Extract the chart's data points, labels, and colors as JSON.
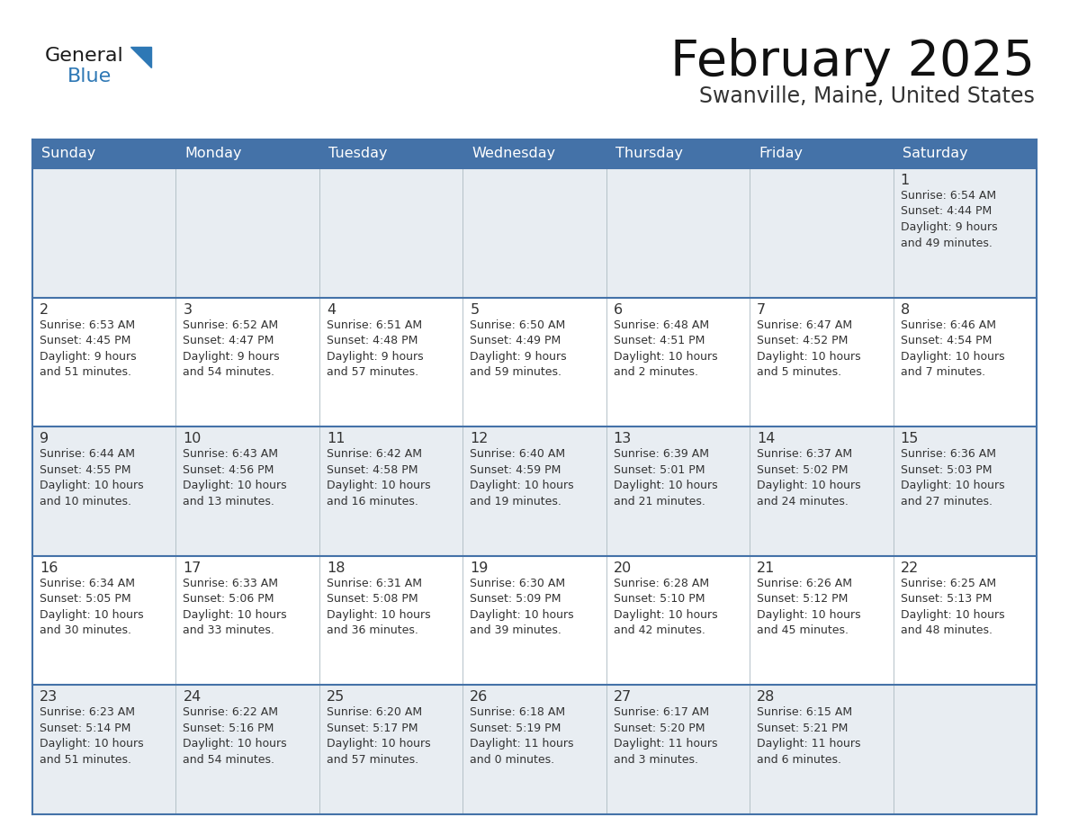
{
  "title": "February 2025",
  "subtitle": "Swanville, Maine, United States",
  "header_color": "#4472a8",
  "header_text_color": "#ffffff",
  "cell_bg_white": "#ffffff",
  "cell_bg_gray": "#e8edf2",
  "border_color": "#4472a8",
  "grid_color": "#b0bec5",
  "text_color": "#333333",
  "day_number_color": "#333333",
  "days_of_week": [
    "Sunday",
    "Monday",
    "Tuesday",
    "Wednesday",
    "Thursday",
    "Friday",
    "Saturday"
  ],
  "weeks": [
    [
      {
        "day": null,
        "info": null
      },
      {
        "day": null,
        "info": null
      },
      {
        "day": null,
        "info": null
      },
      {
        "day": null,
        "info": null
      },
      {
        "day": null,
        "info": null
      },
      {
        "day": null,
        "info": null
      },
      {
        "day": 1,
        "info": "Sunrise: 6:54 AM\nSunset: 4:44 PM\nDaylight: 9 hours\nand 49 minutes."
      }
    ],
    [
      {
        "day": 2,
        "info": "Sunrise: 6:53 AM\nSunset: 4:45 PM\nDaylight: 9 hours\nand 51 minutes."
      },
      {
        "day": 3,
        "info": "Sunrise: 6:52 AM\nSunset: 4:47 PM\nDaylight: 9 hours\nand 54 minutes."
      },
      {
        "day": 4,
        "info": "Sunrise: 6:51 AM\nSunset: 4:48 PM\nDaylight: 9 hours\nand 57 minutes."
      },
      {
        "day": 5,
        "info": "Sunrise: 6:50 AM\nSunset: 4:49 PM\nDaylight: 9 hours\nand 59 minutes."
      },
      {
        "day": 6,
        "info": "Sunrise: 6:48 AM\nSunset: 4:51 PM\nDaylight: 10 hours\nand 2 minutes."
      },
      {
        "day": 7,
        "info": "Sunrise: 6:47 AM\nSunset: 4:52 PM\nDaylight: 10 hours\nand 5 minutes."
      },
      {
        "day": 8,
        "info": "Sunrise: 6:46 AM\nSunset: 4:54 PM\nDaylight: 10 hours\nand 7 minutes."
      }
    ],
    [
      {
        "day": 9,
        "info": "Sunrise: 6:44 AM\nSunset: 4:55 PM\nDaylight: 10 hours\nand 10 minutes."
      },
      {
        "day": 10,
        "info": "Sunrise: 6:43 AM\nSunset: 4:56 PM\nDaylight: 10 hours\nand 13 minutes."
      },
      {
        "day": 11,
        "info": "Sunrise: 6:42 AM\nSunset: 4:58 PM\nDaylight: 10 hours\nand 16 minutes."
      },
      {
        "day": 12,
        "info": "Sunrise: 6:40 AM\nSunset: 4:59 PM\nDaylight: 10 hours\nand 19 minutes."
      },
      {
        "day": 13,
        "info": "Sunrise: 6:39 AM\nSunset: 5:01 PM\nDaylight: 10 hours\nand 21 minutes."
      },
      {
        "day": 14,
        "info": "Sunrise: 6:37 AM\nSunset: 5:02 PM\nDaylight: 10 hours\nand 24 minutes."
      },
      {
        "day": 15,
        "info": "Sunrise: 6:36 AM\nSunset: 5:03 PM\nDaylight: 10 hours\nand 27 minutes."
      }
    ],
    [
      {
        "day": 16,
        "info": "Sunrise: 6:34 AM\nSunset: 5:05 PM\nDaylight: 10 hours\nand 30 minutes."
      },
      {
        "day": 17,
        "info": "Sunrise: 6:33 AM\nSunset: 5:06 PM\nDaylight: 10 hours\nand 33 minutes."
      },
      {
        "day": 18,
        "info": "Sunrise: 6:31 AM\nSunset: 5:08 PM\nDaylight: 10 hours\nand 36 minutes."
      },
      {
        "day": 19,
        "info": "Sunrise: 6:30 AM\nSunset: 5:09 PM\nDaylight: 10 hours\nand 39 minutes."
      },
      {
        "day": 20,
        "info": "Sunrise: 6:28 AM\nSunset: 5:10 PM\nDaylight: 10 hours\nand 42 minutes."
      },
      {
        "day": 21,
        "info": "Sunrise: 6:26 AM\nSunset: 5:12 PM\nDaylight: 10 hours\nand 45 minutes."
      },
      {
        "day": 22,
        "info": "Sunrise: 6:25 AM\nSunset: 5:13 PM\nDaylight: 10 hours\nand 48 minutes."
      }
    ],
    [
      {
        "day": 23,
        "info": "Sunrise: 6:23 AM\nSunset: 5:14 PM\nDaylight: 10 hours\nand 51 minutes."
      },
      {
        "day": 24,
        "info": "Sunrise: 6:22 AM\nSunset: 5:16 PM\nDaylight: 10 hours\nand 54 minutes."
      },
      {
        "day": 25,
        "info": "Sunrise: 6:20 AM\nSunset: 5:17 PM\nDaylight: 10 hours\nand 57 minutes."
      },
      {
        "day": 26,
        "info": "Sunrise: 6:18 AM\nSunset: 5:19 PM\nDaylight: 11 hours\nand 0 minutes."
      },
      {
        "day": 27,
        "info": "Sunrise: 6:17 AM\nSunset: 5:20 PM\nDaylight: 11 hours\nand 3 minutes."
      },
      {
        "day": 28,
        "info": "Sunrise: 6:15 AM\nSunset: 5:21 PM\nDaylight: 11 hours\nand 6 minutes."
      },
      {
        "day": null,
        "info": null
      }
    ]
  ],
  "logo_general_color": "#1a1a1a",
  "logo_blue_color": "#2e78b5",
  "figsize": [
    11.88,
    9.18
  ],
  "dpi": 100
}
